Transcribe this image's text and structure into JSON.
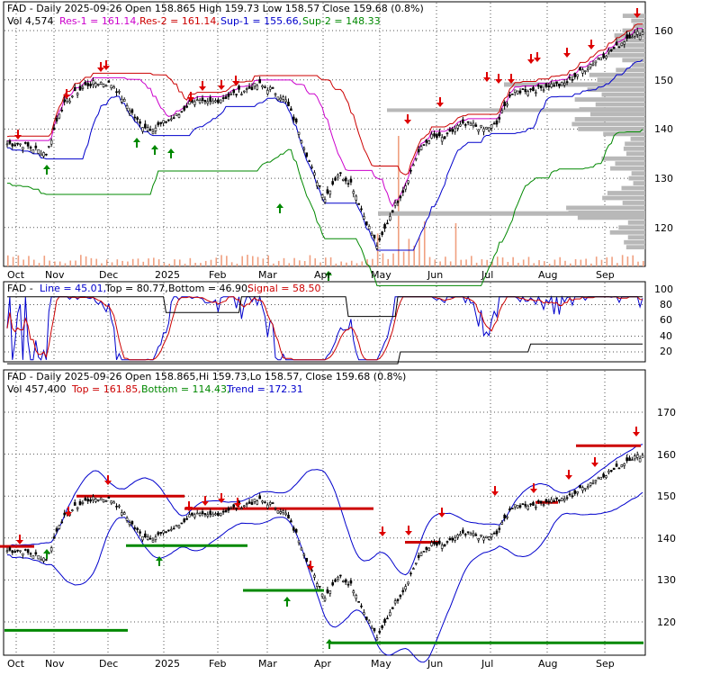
{
  "top_panel": {
    "header_line1": "FAD - Daily 2025-09-26 Open 158.865  High 159.73  Low 158.57  Close 159.68 (0.8%)",
    "vol": "Vol 4,574",
    "res1": "Res-1 = 161.14,",
    "res2": "Res-2 = 161.14,",
    "sup1": "Sup-1 = 155.66,",
    "sup2": "Sup-2 = 148.33",
    "yticks": [
      "160",
      "150",
      "140",
      "130",
      "120"
    ]
  },
  "middle_panel": {
    "fad": "FAD -",
    "line": "Line = 45.01,",
    "top": "Top = 80.77,",
    "bottom": "Bottom = 46.90,",
    "signal": "Signal = 58.50",
    "yticks": [
      "100",
      "80",
      "60",
      "40",
      "20"
    ]
  },
  "bottom_panel": {
    "header_line1": "FAD - Daily 2025-09-26 Open 158.865,Hi 159.73,Lo 158.57,  Close 159.68 (0.8%)",
    "vol": "Vol 457,400",
    "top": "Top = 161.85,",
    "bottom": "Bottom = 114.43,",
    "trend": "Trend = 172.31",
    "yticks": [
      "170",
      "160",
      "150",
      "140",
      "130",
      "120"
    ]
  },
  "x_labels": [
    "Oct",
    "Nov",
    "Dec",
    "2025",
    "Feb",
    "Mar",
    "Apr",
    "May",
    "Jun",
    "Jul",
    "Aug",
    "Sep"
  ],
  "colors": {
    "res": "#cc00cc",
    "sup1": "#0000cc",
    "sup2": "#008800",
    "resline": "#cc0000",
    "signal": "#cc0000",
    "line": "#0000cc",
    "up_arrow": "#008800",
    "down_arrow": "#dd0000",
    "volume": "#f0a080",
    "vol_profile": "#b8b8b8"
  },
  "chart_data": [
    {
      "type": "candlestick",
      "title": "FAD - Daily 2025-09-26",
      "x_labels": [
        "Oct",
        "Nov",
        "Dec",
        "2025",
        "Feb",
        "Mar",
        "Apr",
        "May",
        "Jun",
        "Jul",
        "Aug",
        "Sep"
      ],
      "ylim": [
        113,
        165
      ],
      "close_path": [
        137,
        137,
        136,
        135,
        144,
        147,
        149,
        149.5,
        149,
        145,
        141,
        140,
        141.5,
        143,
        146,
        145,
        146,
        147,
        148,
        149,
        148,
        146,
        140,
        132,
        126,
        131,
        129,
        122,
        116,
        123,
        128,
        135,
        138.5,
        138,
        140.5,
        141,
        140,
        141,
        147,
        148,
        148,
        149,
        149,
        151,
        153,
        155,
        156.5,
        159,
        159.68
      ],
      "resistance": [
        {
          "label": "Res-1",
          "value": 161.14
        },
        {
          "label": "Res-2",
          "value": 161.14
        }
      ],
      "support": [
        {
          "label": "Sup-1",
          "value": 155.66
        },
        {
          "label": "Sup-2",
          "value": 148.33
        }
      ],
      "grid": true
    },
    {
      "type": "line",
      "title": "FAD - Line",
      "ylim": [
        0,
        100
      ],
      "series": [
        {
          "name": "Line",
          "last": 45.01
        },
        {
          "name": "Top",
          "last": 80.77
        },
        {
          "name": "Bottom",
          "last": 46.9
        },
        {
          "name": "Signal",
          "last": 58.5
        }
      ]
    },
    {
      "type": "candlestick",
      "title": "FAD - Daily 2025-09-26",
      "ylim": [
        113,
        175
      ],
      "series": [
        {
          "name": "Top",
          "last": 161.85
        },
        {
          "name": "Bottom",
          "last": 114.43
        },
        {
          "name": "Trend",
          "last": 172.31
        }
      ],
      "grid": true
    }
  ]
}
